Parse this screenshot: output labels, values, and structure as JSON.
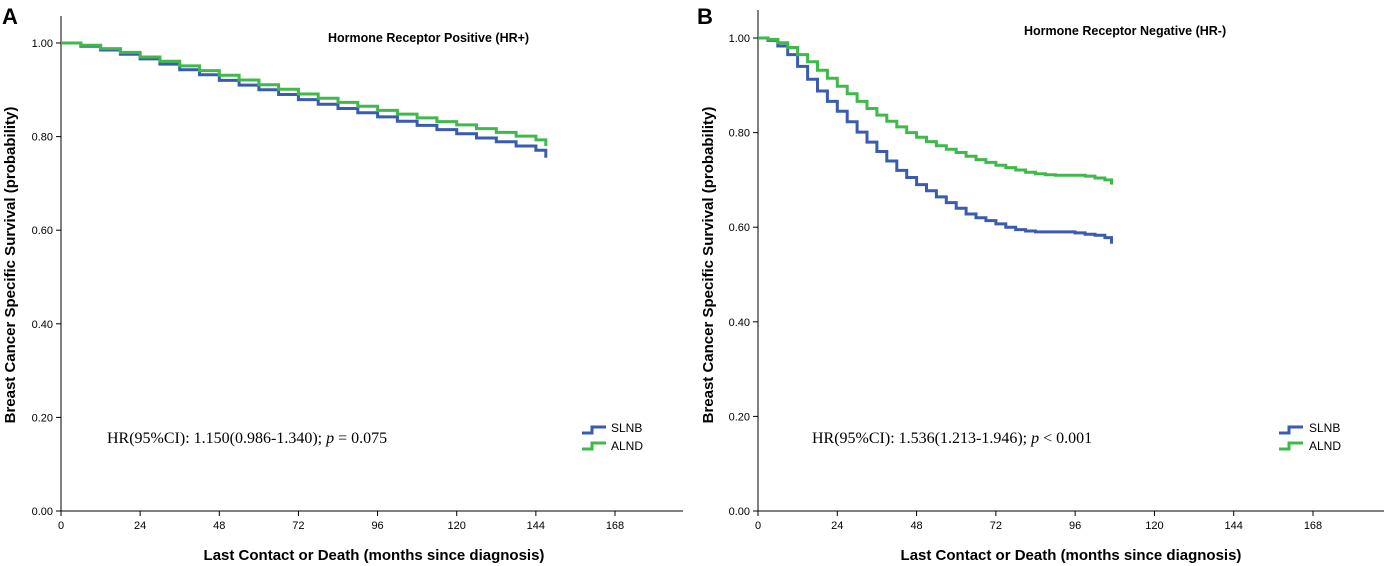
{
  "colors": {
    "slnb": "#3a5bb0",
    "alnd": "#3fba4a"
  },
  "chart_data": [
    {
      "panel_label": "A",
      "type": "line",
      "subtype": "kaplan-meier step",
      "title": "Hormone Receptor Positive (HR+)",
      "xlabel": "Last Contact or Death (months since diagnosis)",
      "ylabel": "Breast Cancer Specific Survival (probability)",
      "xlim": [
        0,
        180
      ],
      "ylim": [
        0,
        1.0
      ],
      "xticks": [
        0,
        24,
        48,
        72,
        96,
        120,
        144,
        168
      ],
      "xtick_labels": [
        "0",
        "24",
        "48",
        "72",
        "96",
        "120",
        "144",
        "168"
      ],
      "yticks": [
        0,
        0.2,
        0.4,
        0.6,
        0.8,
        1.0
      ],
      "ytick_labels": [
        "0.00",
        "0.20",
        "0.40",
        "0.60",
        "0.80",
        "1.00"
      ],
      "annotation": {
        "prefix": "HR(95%CI): 1.150(0.986-1.340); ",
        "p_symbol": "p",
        "suffix": " = 0.075"
      },
      "legend_position": "bottom-right",
      "series": [
        {
          "name": "SLNB",
          "color": "#3a5bb0",
          "x": [
            0,
            6,
            12,
            18,
            24,
            30,
            36,
            42,
            48,
            54,
            60,
            66,
            72,
            78,
            84,
            90,
            96,
            102,
            108,
            114,
            120,
            126,
            132,
            138,
            144,
            147
          ],
          "y": [
            1.0,
            0.993,
            0.985,
            0.976,
            0.966,
            0.955,
            0.943,
            0.932,
            0.92,
            0.91,
            0.9,
            0.89,
            0.879,
            0.869,
            0.86,
            0.851,
            0.842,
            0.833,
            0.824,
            0.815,
            0.806,
            0.797,
            0.789,
            0.78,
            0.771,
            0.755
          ]
        },
        {
          "name": "ALND",
          "color": "#3fba4a",
          "x": [
            0,
            6,
            12,
            18,
            24,
            30,
            36,
            42,
            48,
            54,
            60,
            66,
            72,
            78,
            84,
            90,
            96,
            102,
            108,
            114,
            120,
            126,
            132,
            138,
            144,
            147
          ],
          "y": [
            1.0,
            0.995,
            0.988,
            0.98,
            0.97,
            0.961,
            0.951,
            0.941,
            0.931,
            0.921,
            0.911,
            0.901,
            0.891,
            0.882,
            0.873,
            0.865,
            0.856,
            0.848,
            0.84,
            0.832,
            0.825,
            0.817,
            0.809,
            0.801,
            0.793,
            0.78
          ]
        }
      ]
    },
    {
      "panel_label": "B",
      "type": "line",
      "subtype": "kaplan-meier step",
      "title": "Hormone Receptor Negative (HR-)",
      "xlabel": "Last Contact or Death (months since diagnosis)",
      "ylabel": "Breast Cancer Specific Survival (probability)",
      "xlim": [
        0,
        180
      ],
      "ylim": [
        0,
        1.0
      ],
      "xticks": [
        0,
        24,
        48,
        72,
        96,
        120,
        144,
        168
      ],
      "xtick_labels": [
        "0",
        "24",
        "48",
        "72",
        "96",
        "120",
        "144",
        "168"
      ],
      "yticks": [
        0,
        0.2,
        0.4,
        0.6,
        0.8,
        1.0
      ],
      "ytick_labels": [
        "0.00",
        "0.20",
        "0.40",
        "0.60",
        "0.80",
        "1.00"
      ],
      "annotation": {
        "prefix": "HR(95%CI): 1.536(1.213-1.946); ",
        "p_symbol": "p",
        "suffix": " < 0.001"
      },
      "legend_position": "bottom-right",
      "series": [
        {
          "name": "SLNB",
          "color": "#3a5bb0",
          "x": [
            0,
            3,
            6,
            9,
            12,
            15,
            18,
            21,
            24,
            27,
            30,
            33,
            36,
            39,
            42,
            45,
            48,
            51,
            54,
            57,
            60,
            63,
            66,
            69,
            72,
            75,
            78,
            81,
            84,
            87,
            90,
            93,
            96,
            99,
            102,
            105,
            107
          ],
          "y": [
            1.0,
            0.995,
            0.983,
            0.965,
            0.94,
            0.913,
            0.888,
            0.866,
            0.845,
            0.823,
            0.801,
            0.78,
            0.76,
            0.74,
            0.72,
            0.705,
            0.69,
            0.677,
            0.664,
            0.652,
            0.64,
            0.628,
            0.62,
            0.614,
            0.607,
            0.6,
            0.595,
            0.592,
            0.59,
            0.59,
            0.59,
            0.59,
            0.588,
            0.585,
            0.583,
            0.578,
            0.565
          ]
        },
        {
          "name": "ALND",
          "color": "#3fba4a",
          "x": [
            0,
            3,
            6,
            9,
            12,
            15,
            18,
            21,
            24,
            27,
            30,
            33,
            36,
            39,
            42,
            45,
            48,
            51,
            54,
            57,
            60,
            63,
            66,
            69,
            72,
            75,
            78,
            81,
            84,
            87,
            90,
            93,
            96,
            99,
            102,
            105,
            107
          ],
          "y": [
            1.0,
            0.997,
            0.99,
            0.98,
            0.965,
            0.95,
            0.932,
            0.915,
            0.898,
            0.882,
            0.866,
            0.851,
            0.837,
            0.824,
            0.812,
            0.8,
            0.79,
            0.781,
            0.772,
            0.765,
            0.758,
            0.75,
            0.743,
            0.737,
            0.731,
            0.726,
            0.721,
            0.716,
            0.713,
            0.711,
            0.71,
            0.71,
            0.71,
            0.708,
            0.704,
            0.7,
            0.69
          ]
        }
      ]
    }
  ]
}
